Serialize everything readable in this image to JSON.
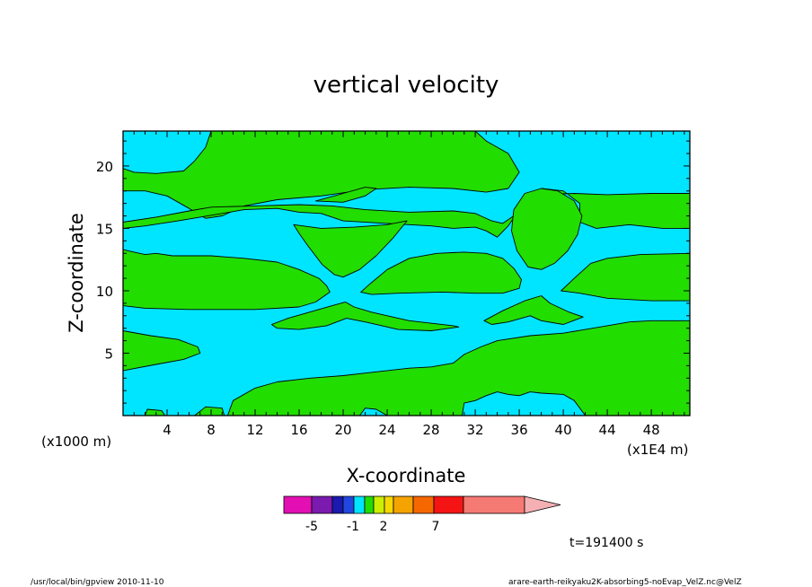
{
  "chart_data": {
    "type": "heatmap",
    "title": "vertical velocity",
    "xlabel": "X-coordinate",
    "ylabel": "Z-coordinate",
    "x_unit": "(x1E4 m)",
    "y_unit": "(x1000 m)",
    "xlim": [
      0,
      51.5
    ],
    "ylim": [
      0,
      22.8
    ],
    "x_ticks": [
      4,
      8,
      12,
      16,
      20,
      24,
      28,
      32,
      36,
      40,
      44,
      48
    ],
    "y_ticks": [
      5,
      10,
      15,
      20
    ],
    "fill_colors": {
      "background": "#00E5FF",
      "shaded": "#22DD00"
    },
    "regions": [
      {
        "name": "upper-left-positive",
        "points": [
          [
            0,
            18
          ],
          [
            2,
            18
          ],
          [
            4,
            17.6
          ],
          [
            6,
            16.6
          ],
          [
            7.5,
            15.8
          ],
          [
            9,
            16
          ],
          [
            11,
            16.8
          ],
          [
            14,
            17.3
          ],
          [
            18,
            17.6
          ],
          [
            22,
            18.1
          ],
          [
            26,
            18.3
          ],
          [
            30,
            18.2
          ],
          [
            33,
            17.9
          ],
          [
            35,
            18.2
          ],
          [
            36,
            19.5
          ],
          [
            35,
            21
          ],
          [
            33,
            22
          ],
          [
            32,
            22.8
          ],
          [
            8,
            22.8
          ],
          [
            7.5,
            21.5
          ],
          [
            6.5,
            20.4
          ],
          [
            5.5,
            19.6
          ],
          [
            3,
            19.4
          ],
          [
            1,
            19.5
          ],
          [
            0,
            19.8
          ]
        ]
      },
      {
        "name": "left-band-15",
        "points": [
          [
            0,
            15
          ],
          [
            2,
            15.2
          ],
          [
            5,
            15.6
          ],
          [
            7,
            15.9
          ],
          [
            9,
            16.2
          ],
          [
            11,
            16.5
          ],
          [
            14,
            16.6
          ],
          [
            16,
            16.3
          ],
          [
            18,
            16.2
          ],
          [
            20,
            15.6
          ],
          [
            24,
            15.4
          ],
          [
            28,
            15.2
          ],
          [
            30,
            15
          ],
          [
            32,
            15.1
          ],
          [
            33,
            14.8
          ],
          [
            34,
            14.3
          ],
          [
            35,
            15.2
          ],
          [
            36,
            16.5
          ],
          [
            37,
            17.3
          ],
          [
            38,
            17.7
          ],
          [
            41,
            17.8
          ],
          [
            44,
            17.7
          ],
          [
            48,
            17.8
          ],
          [
            51.5,
            17.8
          ],
          [
            51.5,
            15
          ],
          [
            49,
            15
          ],
          [
            46,
            15.3
          ],
          [
            43,
            15
          ],
          [
            41.5,
            15.5
          ],
          [
            41.5,
            17
          ],
          [
            40,
            18
          ],
          [
            38,
            18.2
          ],
          [
            37,
            17.5
          ],
          [
            35.5,
            16
          ],
          [
            34.5,
            15.4
          ],
          [
            33.5,
            15.6
          ],
          [
            32,
            16.2
          ],
          [
            30,
            16.4
          ],
          [
            26,
            16.3
          ],
          [
            22,
            16.5
          ],
          [
            19,
            16.8
          ],
          [
            16,
            16.9
          ],
          [
            12,
            16.8
          ],
          [
            8,
            16.7
          ],
          [
            6,
            16.4
          ],
          [
            3,
            15.9
          ],
          [
            0,
            15.5
          ]
        ]
      },
      {
        "name": "v-shape-upper",
        "points": [
          [
            15.5,
            15.3
          ],
          [
            18,
            15
          ],
          [
            21,
            15.1
          ],
          [
            24,
            15.3
          ],
          [
            25.8,
            15.6
          ],
          [
            24.5,
            14.2
          ],
          [
            23,
            12.8
          ],
          [
            21.5,
            11.7
          ],
          [
            20,
            11.1
          ],
          [
            19.2,
            11.3
          ],
          [
            18.1,
            12.1
          ],
          [
            16.8,
            13.6
          ],
          [
            16,
            14.6
          ]
        ]
      },
      {
        "name": "left-band-11",
        "points": [
          [
            0,
            13.3
          ],
          [
            1,
            13.1
          ],
          [
            2,
            12.9
          ],
          [
            3,
            13
          ],
          [
            4.5,
            12.8
          ],
          [
            6,
            12.8
          ],
          [
            8,
            12.8
          ],
          [
            11,
            12.6
          ],
          [
            14,
            12.3
          ],
          [
            16,
            11.7
          ],
          [
            17.8,
            11
          ],
          [
            18.5,
            10.4
          ],
          [
            18.8,
            9.9
          ],
          [
            17.5,
            9.1
          ],
          [
            16,
            8.7
          ],
          [
            12,
            8.5
          ],
          [
            6,
            8.5
          ],
          [
            2,
            8.6
          ],
          [
            0,
            8.8
          ]
        ]
      },
      {
        "name": "center-band-11",
        "points": [
          [
            21.6,
            9.9
          ],
          [
            22.5,
            10.6
          ],
          [
            24,
            11.7
          ],
          [
            26,
            12.6
          ],
          [
            28.5,
            13
          ],
          [
            31,
            13.1
          ],
          [
            33,
            13
          ],
          [
            34.5,
            12.6
          ],
          [
            35.5,
            11.8
          ],
          [
            36.2,
            10.9
          ],
          [
            36,
            10.2
          ],
          [
            34.5,
            9.8
          ],
          [
            32,
            9.8
          ],
          [
            29,
            9.9
          ],
          [
            25,
            9.8
          ],
          [
            22.6,
            9.7
          ]
        ]
      },
      {
        "name": "central-bubble",
        "points": [
          [
            35.3,
            14.8
          ],
          [
            35.5,
            16.5
          ],
          [
            36.5,
            17.8
          ],
          [
            38,
            18.2
          ],
          [
            39.5,
            18
          ],
          [
            41,
            17.2
          ],
          [
            41.7,
            16
          ],
          [
            41.3,
            14.5
          ],
          [
            40.4,
            13.2
          ],
          [
            39.2,
            12.2
          ],
          [
            38,
            11.7
          ],
          [
            36.8,
            11.9
          ],
          [
            35.8,
            13.2
          ]
        ]
      },
      {
        "name": "small-ridge-18",
        "points": [
          [
            17.5,
            17.2
          ],
          [
            20,
            17.8
          ],
          [
            22,
            18.3
          ],
          [
            23,
            18.2
          ],
          [
            22,
            17.6
          ],
          [
            20,
            17.1
          ]
        ]
      },
      {
        "name": "right-band-11",
        "points": [
          [
            39.8,
            10
          ],
          [
            41,
            11
          ],
          [
            42.5,
            12.2
          ],
          [
            44,
            12.6
          ],
          [
            47,
            12.9
          ],
          [
            51.5,
            13
          ],
          [
            51.5,
            9.2
          ],
          [
            48,
            9.2
          ],
          [
            44,
            9.4
          ],
          [
            41.5,
            9.8
          ]
        ]
      },
      {
        "name": "mid-lens-8",
        "points": [
          [
            13.5,
            7.3
          ],
          [
            15,
            7.8
          ],
          [
            17,
            8.3
          ],
          [
            19,
            8.8
          ],
          [
            20.2,
            9.1
          ],
          [
            21,
            8.7
          ],
          [
            22.5,
            8.3
          ],
          [
            24,
            8
          ],
          [
            26,
            7.6
          ],
          [
            30,
            7.2
          ],
          [
            30.5,
            7.1
          ],
          [
            28,
            6.8
          ],
          [
            25,
            6.9
          ],
          [
            22,
            7.5
          ],
          [
            20.3,
            7.8
          ],
          [
            18.5,
            7.2
          ],
          [
            16,
            6.9
          ],
          [
            14,
            7
          ]
        ]
      },
      {
        "name": "right-lens-8",
        "points": [
          [
            32.8,
            7.6
          ],
          [
            34.5,
            8.4
          ],
          [
            36.5,
            9.2
          ],
          [
            38,
            9.6
          ],
          [
            38.8,
            9
          ],
          [
            40.5,
            8.3
          ],
          [
            41.8,
            7.9
          ],
          [
            40,
            7.3
          ],
          [
            38,
            7.6
          ],
          [
            37,
            8
          ],
          [
            35,
            7.5
          ],
          [
            33.5,
            7.3
          ]
        ]
      },
      {
        "name": "left-blob-5",
        "points": [
          [
            0,
            6.8
          ],
          [
            2.5,
            6.4
          ],
          [
            5,
            6.1
          ],
          [
            6.8,
            5.5
          ],
          [
            7,
            5
          ],
          [
            5.5,
            4.5
          ],
          [
            3,
            4.1
          ],
          [
            0,
            3.6
          ]
        ]
      },
      {
        "name": "bottom-right-layer",
        "points": [
          [
            9.5,
            0
          ],
          [
            10,
            1.2
          ],
          [
            12,
            2.2
          ],
          [
            14,
            2.7
          ],
          [
            17,
            3
          ],
          [
            20,
            3.2
          ],
          [
            22,
            3.4
          ],
          [
            24,
            3.6
          ],
          [
            26,
            3.8
          ],
          [
            28,
            3.9
          ],
          [
            30,
            4.2
          ],
          [
            31,
            4.9
          ],
          [
            32.5,
            5.5
          ],
          [
            34,
            6
          ],
          [
            37,
            6.4
          ],
          [
            40,
            6.6
          ],
          [
            42,
            6.9
          ],
          [
            44,
            7.2
          ],
          [
            46,
            7.5
          ],
          [
            48,
            7.6
          ],
          [
            51.5,
            7.6
          ],
          [
            51.5,
            0
          ],
          [
            42,
            0
          ],
          [
            41,
            1.2
          ],
          [
            40,
            1.7
          ],
          [
            38,
            1.8
          ],
          [
            37,
            1.9
          ],
          [
            36,
            1.6
          ],
          [
            35,
            1.7
          ],
          [
            34,
            1.9
          ],
          [
            33,
            1.6
          ],
          [
            32,
            1.2
          ],
          [
            31,
            1
          ],
          [
            30.8,
            0
          ],
          [
            24,
            0
          ],
          [
            23,
            0.5
          ],
          [
            22,
            0.6
          ],
          [
            21.5,
            0
          ]
        ]
      },
      {
        "name": "ground-patch-a",
        "points": [
          [
            2,
            0
          ],
          [
            2.2,
            0.5
          ],
          [
            3.5,
            0.4
          ],
          [
            3.8,
            0
          ]
        ]
      },
      {
        "name": "ground-patch-b",
        "points": [
          [
            6.5,
            0
          ],
          [
            7.5,
            0.7
          ],
          [
            9,
            0.6
          ],
          [
            9.2,
            0
          ]
        ]
      }
    ],
    "colorbar": {
      "colors": [
        "#E30FB3",
        "#7A1AAE",
        "#1A1AAE",
        "#2147E0",
        "#00E5FF",
        "#22DD00",
        "#CCEE00",
        "#F5D800",
        "#F5A300",
        "#F56800",
        "#F51414",
        "#F57A74",
        "#F5B0B4"
      ],
      "tick_labels": [
        "-5",
        "-1",
        "2",
        "7"
      ]
    }
  },
  "annotations": {
    "time": "t=191400 s",
    "footer_left": "/usr/local/bin/gpview  2010-11-10",
    "footer_right": "arare-earth-reikyaku2K-absorbing5-noEvap_VelZ.nc@VelZ"
  }
}
